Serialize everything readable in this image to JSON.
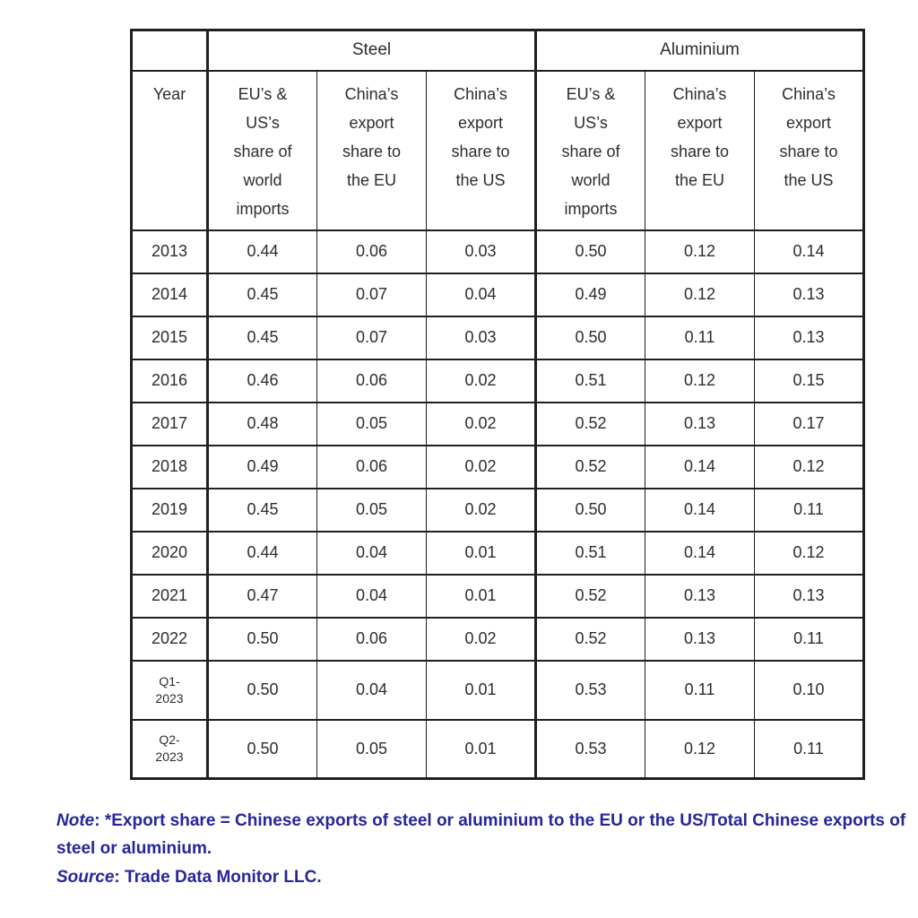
{
  "chart_data": {
    "type": "table",
    "group_headers": [
      "Steel",
      "Aluminium"
    ],
    "columns": [
      "Year",
      "EU’s &\nUS’s\nshare of\nworld\nimports",
      "China’s\nexport\nshare to\nthe EU",
      "China’s\nexport\nshare to\nthe US",
      "EU’s &\nUS’s\nshare of\nworld\nimports",
      "China’s\nexport\nshare to\nthe EU",
      "China’s\nexport\nshare to\nthe US"
    ],
    "rows": [
      {
        "year": "2013",
        "values": [
          "0.44",
          "0.06",
          "0.03",
          "0.50",
          "0.12",
          "0.14"
        ]
      },
      {
        "year": "2014",
        "values": [
          "0.45",
          "0.07",
          "0.04",
          "0.49",
          "0.12",
          "0.13"
        ]
      },
      {
        "year": "2015",
        "values": [
          "0.45",
          "0.07",
          "0.03",
          "0.50",
          "0.11",
          "0.13"
        ]
      },
      {
        "year": "2016",
        "values": [
          "0.46",
          "0.06",
          "0.02",
          "0.51",
          "0.12",
          "0.15"
        ]
      },
      {
        "year": "2017",
        "values": [
          "0.48",
          "0.05",
          "0.02",
          "0.52",
          "0.13",
          "0.17"
        ]
      },
      {
        "year": "2018",
        "values": [
          "0.49",
          "0.06",
          "0.02",
          "0.52",
          "0.14",
          "0.12"
        ]
      },
      {
        "year": "2019",
        "values": [
          "0.45",
          "0.05",
          "0.02",
          "0.50",
          "0.14",
          "0.11"
        ]
      },
      {
        "year": "2020",
        "values": [
          "0.44",
          "0.04",
          "0.01",
          "0.51",
          "0.14",
          "0.12"
        ]
      },
      {
        "year": "2021",
        "values": [
          "0.47",
          "0.04",
          "0.01",
          "0.52",
          "0.13",
          "0.13"
        ]
      },
      {
        "year": "2022",
        "values": [
          "0.50",
          "0.06",
          "0.02",
          "0.52",
          "0.13",
          "0.11"
        ]
      },
      {
        "year": "Q1-\n2023",
        "values": [
          "0.50",
          "0.04",
          "0.01",
          "0.53",
          "0.11",
          "0.10"
        ]
      },
      {
        "year": "Q2-\n2023",
        "values": [
          "0.50",
          "0.05",
          "0.01",
          "0.53",
          "0.12",
          "0.11"
        ]
      }
    ]
  },
  "footer": {
    "note_label": "Note",
    "note_rest": ": *Export share = Chinese exports of steel or aluminium to the EU or the US/Total Chinese exports of steel or aluminium.",
    "source_label": "Source",
    "source_rest": ": Trade Data Monitor LLC."
  },
  "colors": {
    "background": "#ffffff",
    "table_border": "#1f1f1f",
    "table_text": "#2d2d2d",
    "footer_text": "#26269C"
  }
}
